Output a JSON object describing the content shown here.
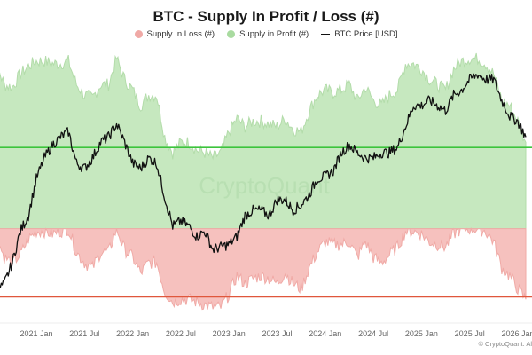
{
  "title": "BTC - Supply In Profit / Loss (#)",
  "legend": [
    {
      "label": "Supply In Loss (#)",
      "color": "#f0a9a6",
      "kind": "dot"
    },
    {
      "label": "Supply in Profit (#)",
      "color": "#a9dba0",
      "kind": "dot"
    },
    {
      "label": "BTC Price [USD]",
      "color": "#111111",
      "kind": "line"
    }
  ],
  "watermark": "CryptoQuant",
  "copyright": "© CryptoQuant. Al",
  "chart_data": {
    "type": "area",
    "title": "BTC - Supply In Profit / Loss (#)",
    "xlabel": "",
    "ylabel": "",
    "x_tick_labels": [
      "2021 Jan",
      "2021 Jul",
      "2022 Jan",
      "2022 Jul",
      "2023 Jan",
      "2023 Jul",
      "2024 Jan",
      "2024 Jul",
      "2025 Jan",
      "2025 Jul",
      "2026 Jan"
    ],
    "x_range": [
      "2020 Jul",
      "2026 Feb"
    ],
    "y_range_relative": [
      0,
      100
    ],
    "grid": false,
    "legend_position": "top-center",
    "reference_lines": [
      {
        "name": "profit-threshold-line",
        "value": 64,
        "color": "#3cc43c"
      },
      {
        "name": "loss-threshold-line",
        "value": 7,
        "color": "#e0573c"
      }
    ],
    "baseline": 33,
    "x": [
      "2020-07",
      "2020-08",
      "2020-09",
      "2020-10",
      "2020-11",
      "2020-12",
      "2021-01",
      "2021-02",
      "2021-03",
      "2021-04",
      "2021-05",
      "2021-06",
      "2021-07",
      "2021-08",
      "2021-09",
      "2021-10",
      "2021-11",
      "2021-12",
      "2022-01",
      "2022-02",
      "2022-03",
      "2022-04",
      "2022-05",
      "2022-06",
      "2022-07",
      "2022-08",
      "2022-09",
      "2022-10",
      "2022-11",
      "2022-12",
      "2023-01",
      "2023-02",
      "2023-03",
      "2023-04",
      "2023-05",
      "2023-06",
      "2023-07",
      "2023-08",
      "2023-09",
      "2023-10",
      "2023-11",
      "2023-12",
      "2024-01",
      "2024-02",
      "2024-03",
      "2024-04",
      "2024-05",
      "2024-06",
      "2024-07",
      "2024-08",
      "2024-09",
      "2024-10",
      "2024-11",
      "2024-12",
      "2025-01",
      "2025-02",
      "2025-03",
      "2025-04",
      "2025-05",
      "2025-06",
      "2025-07",
      "2025-08",
      "2025-09",
      "2025-10",
      "2025-11",
      "2025-12",
      "2026-01",
      "2026-02"
    ],
    "series": [
      {
        "name": "Supply in Profit (#)",
        "color": "#a9dba0",
        "values": [
          94,
          96,
          88,
          87,
          92,
          95,
          97,
          97,
          96,
          96,
          97,
          88,
          84,
          83,
          88,
          88,
          98,
          90,
          86,
          80,
          84,
          84,
          68,
          62,
          66,
          66,
          63,
          62,
          60,
          62,
          70,
          75,
          72,
          74,
          74,
          73,
          72,
          75,
          71,
          70,
          78,
          84,
          86,
          85,
          86,
          88,
          82,
          87,
          82,
          80,
          84,
          86,
          96,
          96,
          94,
          90,
          88,
          86,
          94,
          97,
          98,
          98,
          96,
          92,
          82,
          80,
          74,
          66
        ]
      },
      {
        "name": "Supply In Loss (#)",
        "color": "#f0a9a6",
        "values": [
          31,
          30,
          22,
          20,
          23,
          29,
          32,
          32,
          31,
          32,
          33,
          24,
          20,
          18,
          24,
          24,
          33,
          25,
          22,
          16,
          20,
          20,
          9,
          5,
          6,
          6,
          5,
          4,
          3,
          3,
          8,
          15,
          12,
          14,
          15,
          14,
          12,
          16,
          12,
          10,
          18,
          24,
          28,
          27,
          27,
          28,
          22,
          28,
          22,
          20,
          23,
          26,
          32,
          32,
          31,
          28,
          27,
          26,
          31,
          33,
          33,
          33,
          32,
          28,
          18,
          15,
          10,
          6
        ]
      },
      {
        "name": "BTC Price [USD]",
        "color": "#111111",
        "values": [
          8,
          9,
          12,
          20,
          32,
          38,
          52,
          60,
          65,
          68,
          70,
          58,
          56,
          60,
          66,
          68,
          73,
          66,
          58,
          56,
          60,
          58,
          45,
          34,
          36,
          34,
          30,
          32,
          25,
          26,
          27,
          30,
          38,
          40,
          40,
          38,
          44,
          44,
          40,
          42,
          46,
          52,
          53,
          55,
          62,
          65,
          62,
          60,
          60,
          62,
          62,
          64,
          72,
          80,
          80,
          82,
          80,
          78,
          84,
          86,
          90,
          92,
          90,
          90,
          82,
          76,
          74,
          68
        ]
      }
    ]
  }
}
